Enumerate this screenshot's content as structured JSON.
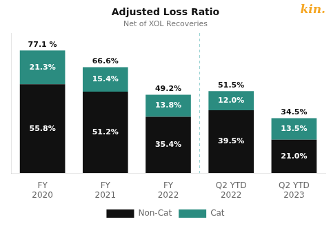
{
  "chart_data": {
    "type": "bar",
    "title": "Adjusted Loss Ratio",
    "subtitle": "Net of XOL Recoveries",
    "categories": [
      "FY\n2020",
      "FY\n2021",
      "FY\n2022",
      "Q2 YTD\n2022",
      "Q2 YTD\n2023"
    ],
    "series": [
      {
        "name": "Non-Cat",
        "color": "#111111",
        "values": [
          55.8,
          51.2,
          35.4,
          39.5,
          21.0
        ],
        "value_labels": [
          "55.8%",
          "51.2%",
          "35.4%",
          "39.5%",
          "21.0%"
        ]
      },
      {
        "name": "Cat",
        "color": "#2b8c80",
        "values": [
          21.3,
          15.4,
          13.8,
          12.0,
          13.5
        ],
        "value_labels": [
          "21.3%",
          "15.4%",
          "13.8%",
          "12.0%",
          "13.5%"
        ]
      }
    ],
    "totals": [
      77.1,
      66.6,
      49.2,
      51.5,
      34.5
    ],
    "total_labels": [
      "77.1 %",
      "66.6%",
      "49.2%",
      "51.5%",
      "34.5%"
    ],
    "stacked": true,
    "data_labels": true,
    "ylim": [
      0,
      88
    ],
    "tick_labels": "x",
    "grid": false,
    "legend": "bottom",
    "divider": {
      "after": "FY\n2022",
      "color": "#8ecece",
      "line_style": "dashed"
    },
    "annotations": [
      {
        "text": "kin.",
        "color": "#f5a623"
      }
    ]
  }
}
